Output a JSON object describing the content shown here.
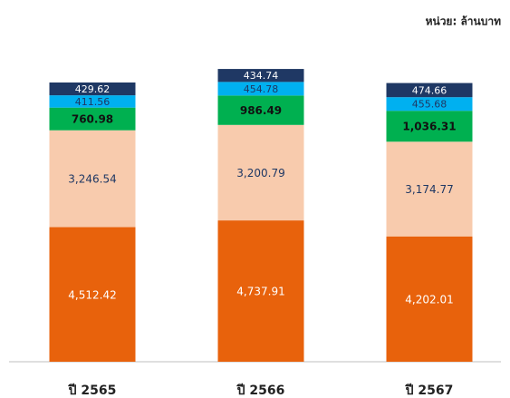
{
  "chart_data": {
    "type": "stacked-bar",
    "unit_label": "หน่วย: ล้านบาท",
    "categories": [
      "ปี 2565",
      "ปี 2566",
      "ปี 2567"
    ],
    "series": [
      {
        "color": "#e8620c",
        "label_color": "#ffffff",
        "values": [
          4512.42,
          4737.91,
          4202.01
        ],
        "value_labels": [
          "4,512.42",
          "4,737.91",
          "4,202.01"
        ]
      },
      {
        "color": "#f8cbad",
        "label_color": "#1f3864",
        "values": [
          3246.54,
          3200.79,
          3174.77
        ],
        "value_labels": [
          "3,246.54",
          "3,200.79",
          "3,174.77"
        ]
      },
      {
        "color": "#00b050",
        "label_color": "#111111",
        "values": [
          760.98,
          986.49,
          1036.31
        ],
        "value_labels": [
          "760.98",
          "986.49",
          "1,036.31"
        ]
      },
      {
        "color": "#00b0f0",
        "label_color": "#1f3864",
        "values": [
          411.56,
          454.78,
          455.68
        ],
        "value_labels": [
          "411.56",
          "454.78",
          "455.68"
        ]
      },
      {
        "color": "#1f3864",
        "label_color": "#ffffff",
        "values": [
          429.62,
          434.74,
          474.66
        ],
        "value_labels": [
          "429.62",
          "434.74",
          "474.66"
        ]
      }
    ]
  }
}
